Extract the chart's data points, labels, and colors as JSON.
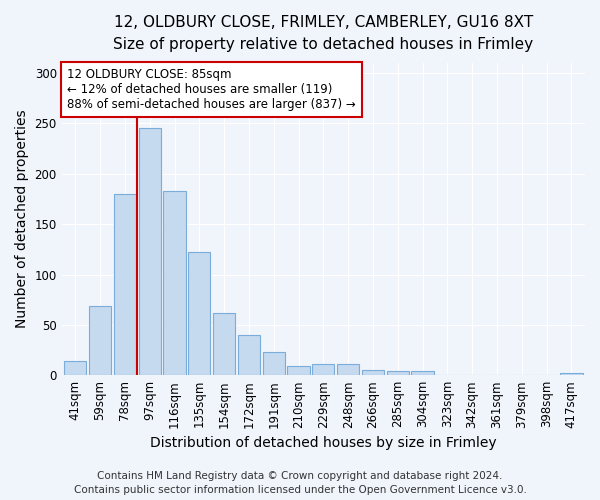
{
  "title1": "12, OLDBURY CLOSE, FRIMLEY, CAMBERLEY, GU16 8XT",
  "title2": "Size of property relative to detached houses in Frimley",
  "xlabel": "Distribution of detached houses by size in Frimley",
  "ylabel": "Number of detached properties",
  "categories": [
    "41sqm",
    "59sqm",
    "78sqm",
    "97sqm",
    "116sqm",
    "135sqm",
    "154sqm",
    "172sqm",
    "191sqm",
    "210sqm",
    "229sqm",
    "248sqm",
    "266sqm",
    "285sqm",
    "304sqm",
    "323sqm",
    "342sqm",
    "361sqm",
    "379sqm",
    "398sqm",
    "417sqm"
  ],
  "values": [
    14,
    69,
    180,
    246,
    183,
    122,
    62,
    40,
    23,
    9,
    11,
    11,
    5,
    4,
    4,
    0,
    0,
    0,
    0,
    0,
    2
  ],
  "bar_color": "#c5d9ef",
  "bar_edgecolor": "#7aadda",
  "vline_color": "#cc0000",
  "vline_x": 2.5,
  "annotation_line1": "12 OLDBURY CLOSE: 85sqm",
  "annotation_line2": "← 12% of detached houses are smaller (119)",
  "annotation_line3": "88% of semi-detached houses are larger (837) →",
  "annotation_box_facecolor": "#ffffff",
  "annotation_box_edgecolor": "#cc0000",
  "ylim": [
    0,
    310
  ],
  "yticks": [
    0,
    50,
    100,
    150,
    200,
    250,
    300
  ],
  "footer1": "Contains HM Land Registry data © Crown copyright and database right 2024.",
  "footer2": "Contains public sector information licensed under the Open Government Licence v3.0.",
  "fig_bg_color": "#f0f4fb",
  "plot_bg_color": "#f0f4fb",
  "title1_fontsize": 11,
  "title2_fontsize": 10,
  "axis_label_fontsize": 10,
  "tick_fontsize": 8.5,
  "footer_fontsize": 7.5,
  "annotation_fontsize": 8.5
}
